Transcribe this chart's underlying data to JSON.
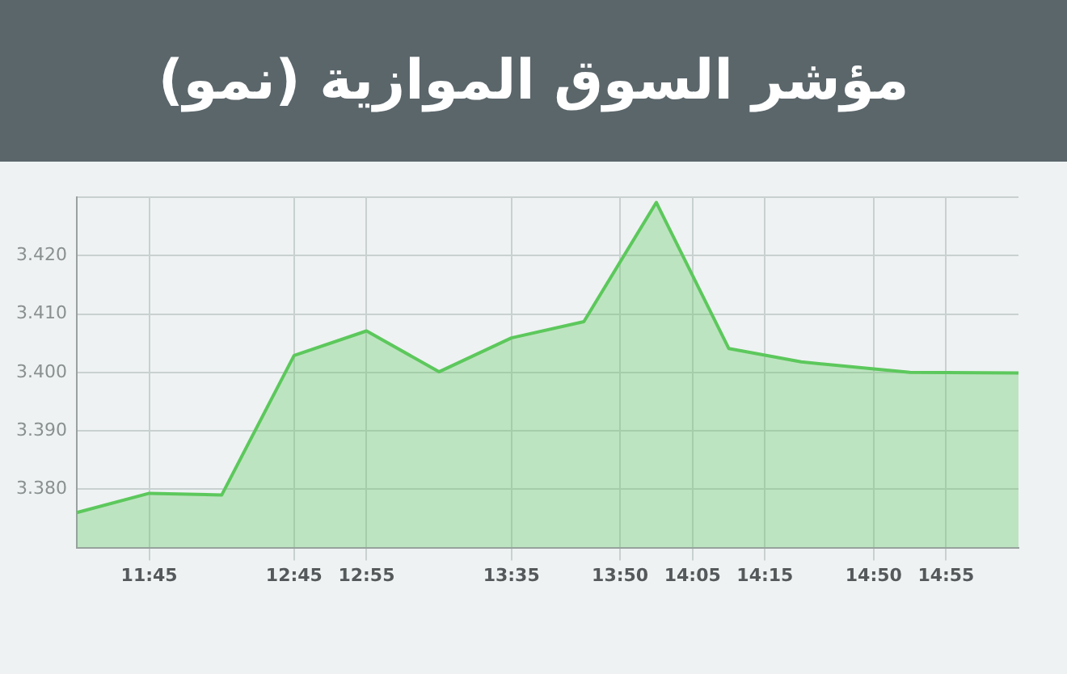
{
  "chart_data": {
    "type": "area",
    "title": "مؤشر السوق الموازية (نمو)",
    "categories": [
      null,
      null,
      "11:45",
      null,
      null,
      null,
      "12:45",
      null,
      "12:55",
      null,
      null,
      null,
      "13:35",
      null,
      null,
      "13:50",
      null,
      "14:05",
      null,
      "14:15",
      null,
      null,
      "14:50",
      null,
      "14:55",
      null,
      null
    ],
    "series": [
      {
        "color": "#5cc85c",
        "values": [
          3.376,
          null,
          3.3793,
          null,
          3.379,
          null,
          3.4029,
          null,
          3.4071,
          null,
          3.4001,
          null,
          3.4059,
          null,
          3.4087,
          null,
          3.4291,
          null,
          3.4041,
          null,
          3.4018,
          null,
          null,
          3.4,
          null,
          null,
          3.3999
        ]
      }
    ],
    "ylim": [
      3.37,
      3.43
    ],
    "yticks": [
      {
        "value": 3.38,
        "label": "3.380"
      },
      {
        "value": 3.39,
        "label": "3.390"
      },
      {
        "value": 3.4,
        "label": "3.400"
      },
      {
        "value": 3.41,
        "label": "3.410"
      },
      {
        "value": 3.42,
        "label": "3.420"
      },
      {
        "value": 3.43,
        "label": null
      }
    ],
    "grid": true,
    "legend": false,
    "marker": "none",
    "line_style": "solid"
  }
}
